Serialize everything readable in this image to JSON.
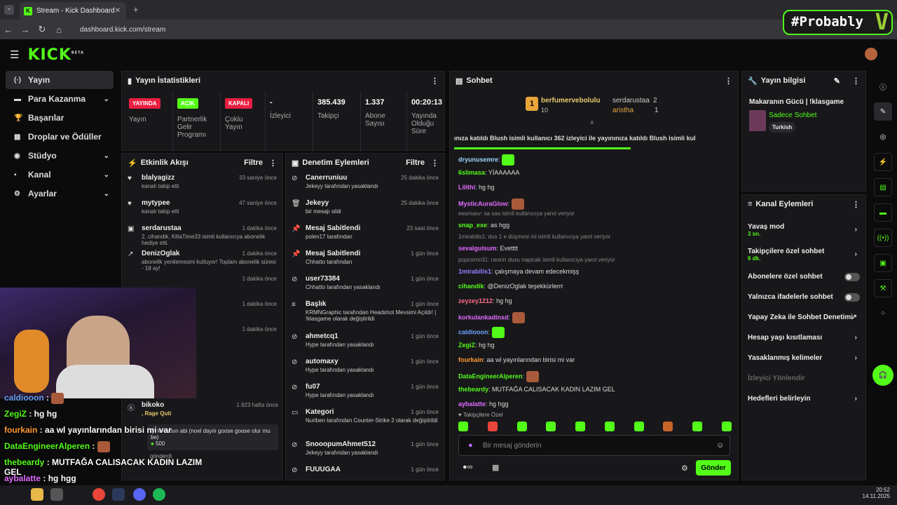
{
  "browser": {
    "tab_title": "Stream - Kick Dashboard",
    "url": "dashboard.kick.com/stream"
  },
  "overlay_badge": "#Probably",
  "logo": "KICK",
  "logo_sup": "BETA",
  "sidebar": {
    "items": [
      {
        "label": "Yayın",
        "icon": "broadcast-icon"
      },
      {
        "label": "Para Kazanma",
        "icon": "money-icon",
        "chevron": true
      },
      {
        "label": "Başarılar",
        "icon": "trophy-icon"
      },
      {
        "label": "Droplar ve Ödüller",
        "icon": "gift-icon"
      },
      {
        "label": "Stüdyo",
        "icon": "studio-icon",
        "chevron": true
      },
      {
        "label": "Kanal",
        "icon": "channel-icon",
        "chevron": true
      },
      {
        "label": "Ayarlar",
        "icon": "gear-icon",
        "chevron": true
      }
    ]
  },
  "stats": {
    "title": "Yayın İstatistikleri",
    "items": [
      {
        "badge": "YAYINDA",
        "badge_color": "#e91e40",
        "label": "Yayın"
      },
      {
        "badge": "AÇIK",
        "badge_color": "#53fc18",
        "label": "Partnerlik Gelir Programı"
      },
      {
        "badge": "KAPALI",
        "badge_color": "#e91e40",
        "label": "Çoklu Yayın"
      },
      {
        "value": "-",
        "label": "İzleyici"
      },
      {
        "value": "385.439",
        "label": "Takipçi"
      },
      {
        "value": "1.337",
        "label": "Abone Sayısı"
      },
      {
        "value": "00:20:13",
        "label": "Yayında Olduğu Süre"
      }
    ]
  },
  "activity": {
    "title": "Etkinlik Akışı",
    "filter": "Filtre",
    "items": [
      {
        "name": "blalyagizz",
        "sub": "kanalı takip etti",
        "time": "33 saniye önce"
      },
      {
        "name": "mytypee",
        "sub": "kanalı takip etti",
        "time": "47 saniye önce"
      },
      {
        "name": "serdarustaa",
        "sub": "2, cihandik, KillaTime33 isimli kullanıcıya abonelik hediye etti.",
        "time": "1 dakika önce"
      },
      {
        "name": "DenizOglak",
        "sub": "abonelik yenilemesini kutluyor! Toplam abonelik süresi - 18 ay!",
        "time": "1 dakika önce"
      },
      {
        "name": "",
        "sub": "",
        "time": "1 dakika önce"
      },
      {
        "name": "",
        "sub": "",
        "time": "1 dakika önce"
      },
      {
        "name": "",
        "sub": "",
        "time": "1 dakika önce"
      }
    ],
    "bottom": {
      "name": "bikoko",
      "sub": ", Rage Quit",
      "time": "1.923 hafta önce",
      "quote": "iyi ki varsın abi (noel dayılı goose goose olur mu be)",
      "amount": "500",
      "action": "gönderdi"
    }
  },
  "moderation": {
    "title": "Denetim Eylemleri",
    "filter": "Filtre",
    "items": [
      {
        "name": "Canerruniuu",
        "sub": "Jekeyy tarafından yasaklandı",
        "time": "25 dakika önce"
      },
      {
        "name": "Jekeyy",
        "sub": "bir mesajı sildi",
        "time": "25 dakika önce"
      },
      {
        "name": "Mesaj Sabitlendi",
        "sub": "polen17 tarafından",
        "time": "23 saat önce"
      },
      {
        "name": "Mesaj Sabitlendi",
        "sub": "Chhatto tarafından",
        "time": "1 gün önce"
      },
      {
        "name": "user73384",
        "sub": "Chhatto tarafından yasaklandı",
        "time": "1 gün önce"
      },
      {
        "name": "Başlık",
        "sub": "KRMNGraphic tarafından Headshot Mevsimi Açıldı! | !klasgame olarak değiştirildi",
        "time": "1 gün önce"
      },
      {
        "name": "ahmetcq1",
        "sub": "Hype tarafından yasaklandı",
        "time": "1 gün önce"
      },
      {
        "name": "automaxy",
        "sub": "Hype tarafından yasaklandı",
        "time": "1 gün önce"
      },
      {
        "name": "fu07",
        "sub": "Hype tarafından yasaklandı",
        "time": "1 gün önce"
      },
      {
        "name": "Kategori",
        "sub": "Nuriben tarafından Counter-Strike 2 olarak değiştirildi",
        "time": "1 gün önce"
      },
      {
        "name": "SnooopumAhmet512",
        "sub": "Jekeyy tarafından yasaklandı",
        "time": "1 gün önce"
      },
      {
        "name": "FUUUGAA",
        "sub": "",
        "time": "1 gün önce"
      }
    ]
  },
  "chat": {
    "title": "Sohbet",
    "leader": {
      "rank": "1",
      "name": "berfumervebolulu",
      "count": "10"
    },
    "leaders2": [
      {
        "name": "serdarustaa",
        "count": "2"
      },
      {
        "name": "aristha",
        "count": "1"
      }
    ],
    "ticker": "ınıza katıldı  Blush isimli kullanıcı 362 izleyici ile yayınınıza katıldı  Blush isimli kul",
    "messages": [
      {
        "user": "dryunusemre",
        "color": "#9ad8ff",
        "text": ""
      },
      {
        "user": "6slimasa",
        "color": "#53fc18",
        "text": "YİAAAAAA"
      },
      {
        "user": "Lilithi",
        "color": "#e06bff",
        "text": "hg hg"
      },
      {
        "user": "MysticAuraGlow",
        "color": "#e06bff",
        "text": ""
      },
      {
        "reply": "eesmasv: sa saa isimli kullanıcıya yanıt veriyor",
        "user": "snap_exe",
        "color": "#53fc18",
        "text": "as hgg"
      },
      {
        "reply": "1mirabilis1: dus 1 e düşmesi mi isimli kullanıcıya yanıt veriyor",
        "user": "sevalgulsum",
        "color": "#e06bff",
        "text": "Evetttt"
      },
      {
        "reply": "popcornn31: nesrin dusu napicak isimli kullanıcıya yanıt veriyor",
        "user": "1mirabilis1",
        "color": "#9a7dff",
        "text": "çalışmaya devam edecekmişş"
      },
      {
        "user": "cihandik",
        "color": "#53fc18",
        "text": "@DenizOglak teşekkürlerrr"
      },
      {
        "user": "zeyzey1212",
        "color": "#ff6b8a",
        "text": "hg hg"
      },
      {
        "user": "korkulankadinxd",
        "color": "#e06bff",
        "text": ""
      },
      {
        "user": "caldiooon",
        "color": "#6ba3ff",
        "text": ""
      },
      {
        "user": "ZegiZ",
        "color": "#53fc18",
        "text": "hg hg"
      },
      {
        "user": "fourkain",
        "color": "#ff9933",
        "text": "aa wl yayınlarından birisi mi var"
      },
      {
        "user": "DataEngineerAlperen",
        "color": "#53fc18",
        "text": ""
      },
      {
        "user": "thebeardy",
        "color": "#53fc18",
        "text": "MUTFAĞA CALISACAK KADIN LAZIM GEL"
      },
      {
        "user": "aybalatte",
        "color": "#e06bff",
        "text": "hg hgg"
      }
    ],
    "followers_only": "Takipçilere Özel",
    "input_placeholder": "Bir mesaj gönderin",
    "send_label": "Gönder"
  },
  "info": {
    "title": "Yayın bilgisi",
    "stream_title": "Makaranın Gücü | !klasgame",
    "category": "Sadece Sohbet",
    "tag": "Turkish"
  },
  "channel_actions": {
    "title": "Kanal Eylemleri",
    "items": [
      {
        "label": "Yavaş mod",
        "sub": "3 sn.",
        "control": "chevron"
      },
      {
        "label": "Takipçilere özel sohbet",
        "sub": "6 dk.",
        "control": "chevron"
      },
      {
        "label": "Abonelere özel sohbet",
        "control": "toggle"
      },
      {
        "label": "Yalnızca ifadelerle sohbet",
        "control": "toggle"
      },
      {
        "label": "Yapay Zeka ile Sohbet Denetimi",
        "control": "external"
      },
      {
        "label": "Hesap yaşı kısıtlaması",
        "control": "chevron"
      },
      {
        "label": "Yasaklanmış kelimeler",
        "control": "chevron"
      },
      {
        "label": "İzleyici Yönlendir",
        "control": "none",
        "disabled": true
      },
      {
        "label": "Hedefleri belirleyin",
        "control": "chevron"
      }
    ]
  },
  "overlay_chat": [
    {
      "user": "caldiooon",
      "color": "#6ba3ff",
      "text": ""
    },
    {
      "user": "ZegiZ",
      "color": "#53fc18",
      "text": "hg hg"
    },
    {
      "user": "fourkain",
      "color": "#ff9933",
      "text": "aa wl yayınlarından birisi mi var"
    },
    {
      "user": "DataEngineerAlperen",
      "color": "#53fc18",
      "text": ""
    },
    {
      "user": "thebeardy",
      "color": "#53fc18",
      "text": "MUTFAĞA CALISACAK KADIN LAZIM GEL"
    },
    {
      "user": "aybalatte",
      "color": "#e06bff",
      "text": "hg hgg"
    }
  ],
  "taskbar": {
    "time": "20:52",
    "date": "14.11.2025"
  },
  "colors": {
    "accent": "#53fc18",
    "live": "#e91e40"
  }
}
